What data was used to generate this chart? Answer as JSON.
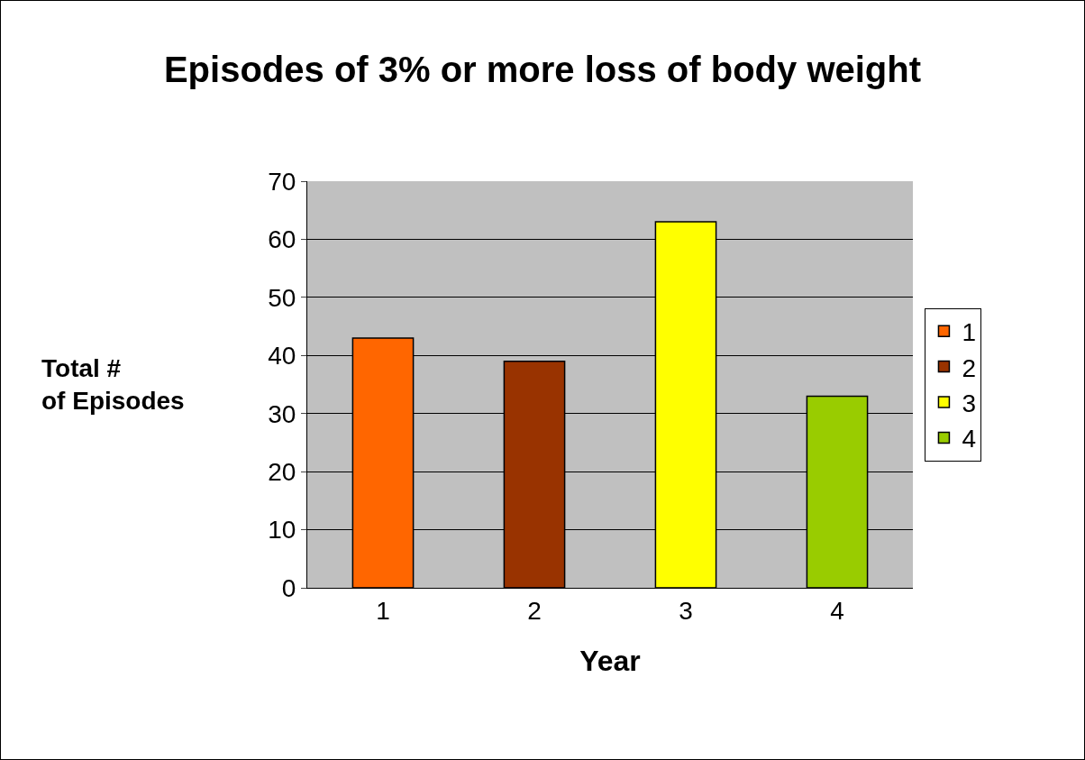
{
  "chart_data": {
    "type": "bar",
    "title": "Episodes of 3% or more loss of body weight",
    "xlabel": "Year",
    "ylabel": "Total #\nof Episodes",
    "categories": [
      "1",
      "2",
      "3",
      "4"
    ],
    "series": [
      {
        "name": "1",
        "color": "#ff6600",
        "values": [
          43,
          null,
          null,
          null
        ]
      },
      {
        "name": "2",
        "color": "#993300",
        "values": [
          null,
          39,
          null,
          null
        ]
      },
      {
        "name": "3",
        "color": "#ffff00",
        "values": [
          null,
          null,
          63,
          null
        ]
      },
      {
        "name": "4",
        "color": "#99cc00",
        "values": [
          null,
          null,
          null,
          33
        ]
      }
    ],
    "ylim": [
      0,
      70
    ],
    "yticks": [
      0,
      10,
      20,
      30,
      40,
      50,
      60,
      70
    ],
    "grid": "y",
    "legend": "right"
  }
}
